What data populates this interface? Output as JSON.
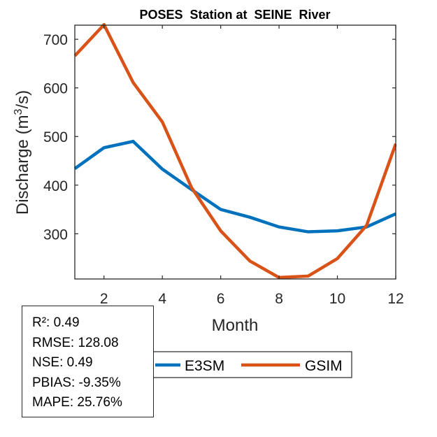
{
  "chart_data": {
    "type": "line",
    "title": "POSES  Station at  SEINE  River",
    "xlabel": "Month",
    "ylabel": "Discharge (m",
    "ylabel_sup": "3",
    "ylabel_tail": "/s)",
    "x": [
      1,
      2,
      3,
      4,
      5,
      6,
      7,
      8,
      9,
      10,
      11,
      12
    ],
    "xlim": [
      1,
      12
    ],
    "ylim": [
      207,
      729
    ],
    "xticks": [
      2,
      4,
      6,
      8,
      10,
      12
    ],
    "xtick_labels": [
      "2",
      "4",
      "6",
      "8",
      "10",
      "12"
    ],
    "yticks": [
      300,
      400,
      500,
      600,
      700
    ],
    "ytick_labels": [
      "300",
      "400",
      "500",
      "600",
      "700"
    ],
    "grid": false,
    "legend_placement": "bottom-center, horizontal",
    "series": [
      {
        "name": "E3SM",
        "color": "#0072BD",
        "values": [
          434,
          477,
          490,
          433,
          391,
          350,
          334,
          314,
          304,
          306,
          314,
          341
        ]
      },
      {
        "name": "GSIM",
        "color": "#D95319",
        "values": [
          666,
          730,
          611,
          530,
          395,
          306,
          244,
          210,
          213,
          249,
          317,
          485
        ]
      }
    ]
  },
  "stats": {
    "lines": [
      "R²: 0.49",
      "RMSE: 128.08",
      "NSE: 0.49",
      "PBIAS: -9.35%",
      "MAPE: 25.76%"
    ]
  }
}
